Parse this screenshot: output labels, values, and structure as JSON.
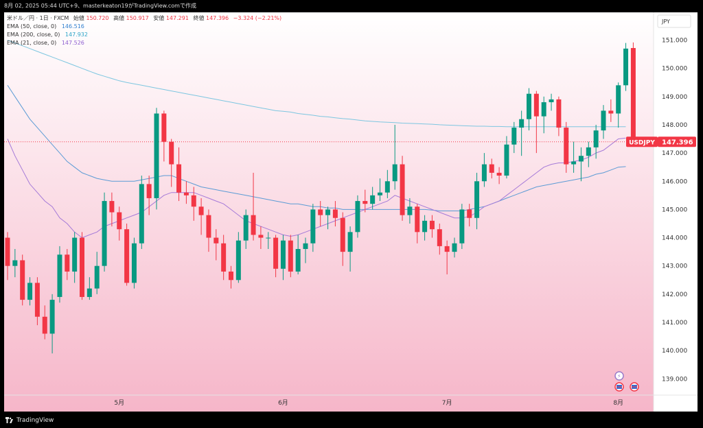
{
  "header": {
    "timestamp": "8月 02, 2025 05:44 UTC+9、masterkeaton19がTradingView.comで作成"
  },
  "legend": {
    "symbol_line": "米ドル／円 · 1日 · FXCM",
    "open_label": "始値",
    "open": "150.720",
    "high_label": "高値",
    "high": "150.917",
    "low_label": "安値",
    "low": "147.291",
    "close_label": "終値",
    "close": "147.396",
    "change": "−3.324 (−2.21%)",
    "ema50_label": "EMA (50, close, 0)",
    "ema50_value": "146.516",
    "ema200_label": "EMA (200, close, 0)",
    "ema200_value": "147.932",
    "ema21_label": "EMA (21, close, 0)",
    "ema21_value": "147.526"
  },
  "currency_box": "JPY",
  "footer": {
    "brand": "TradingView"
  },
  "colors": {
    "up": "#089981",
    "down": "#f23645",
    "ema50": "#5b9bd5",
    "ema200": "#7cc6e0",
    "ema21": "#a57ad8",
    "bg_top": "#ffffff",
    "bg_bottom": "#f6b6c9"
  },
  "chart_data": {
    "type": "candlestick",
    "symbol": "USDJPY",
    "timeframe": "1日",
    "y_ticks": [
      "151.000",
      "150.000",
      "149.000",
      "148.000",
      "147.000",
      "146.000",
      "145.000",
      "144.000",
      "143.000",
      "142.000",
      "141.000",
      "140.000",
      "139.000"
    ],
    "ylim": [
      138.7,
      151.7
    ],
    "x_ticks": [
      {
        "label": "5月",
        "index": 15
      },
      {
        "label": "6月",
        "index": 37
      },
      {
        "label": "7月",
        "index": 59
      },
      {
        "label": "8月",
        "index": 82
      }
    ],
    "last_price": {
      "symbol": "USDJPY",
      "value": "147.396",
      "y": 147.396
    },
    "candles": [
      [
        144.0,
        143.0,
        144.2,
        142.5
      ],
      [
        143.0,
        143.2,
        143.6,
        142.6
      ],
      [
        143.2,
        141.8,
        143.4,
        141.6
      ],
      [
        141.8,
        142.4,
        142.6,
        141.6
      ],
      [
        142.4,
        141.2,
        142.6,
        140.9
      ],
      [
        141.2,
        140.6,
        141.6,
        140.4
      ],
      [
        140.6,
        141.8,
        142.0,
        139.9
      ],
      [
        141.9,
        143.4,
        143.7,
        141.7
      ],
      [
        143.4,
        142.8,
        143.6,
        142.5
      ],
      [
        142.8,
        144.0,
        144.2,
        142.4
      ],
      [
        144.0,
        141.9,
        144.2,
        141.8
      ],
      [
        141.9,
        142.2,
        142.6,
        141.8
      ],
      [
        142.2,
        143.0,
        143.5,
        142.0
      ],
      [
        143.0,
        145.3,
        145.6,
        142.8
      ],
      [
        145.3,
        144.9,
        145.6,
        144.4
      ],
      [
        144.9,
        144.3,
        145.1,
        143.9
      ],
      [
        144.3,
        142.4,
        144.5,
        142.3
      ],
      [
        142.4,
        143.8,
        144.0,
        142.2
      ],
      [
        143.8,
        145.9,
        146.2,
        143.6
      ],
      [
        145.9,
        145.4,
        146.2,
        144.8
      ],
      [
        145.4,
        148.4,
        148.6,
        145.0
      ],
      [
        148.4,
        147.4,
        148.5,
        146.7
      ],
      [
        147.4,
        146.6,
        147.5,
        145.8
      ],
      [
        146.6,
        145.6,
        147.2,
        145.3
      ],
      [
        145.6,
        145.5,
        146.0,
        145.2
      ],
      [
        145.5,
        145.1,
        145.8,
        144.6
      ],
      [
        145.1,
        144.8,
        145.4,
        144.1
      ],
      [
        144.8,
        144.0,
        145.0,
        143.5
      ],
      [
        144.0,
        143.8,
        144.3,
        143.2
      ],
      [
        143.8,
        142.8,
        144.1,
        142.5
      ],
      [
        142.8,
        142.5,
        143.0,
        142.2
      ],
      [
        142.5,
        143.9,
        144.2,
        142.4
      ],
      [
        143.9,
        144.8,
        145.0,
        143.6
      ],
      [
        144.8,
        144.1,
        146.3,
        143.9
      ],
      [
        144.1,
        144.0,
        144.4,
        143.6
      ],
      [
        144.0,
        144.0,
        144.2,
        143.6
      ],
      [
        144.0,
        142.9,
        144.1,
        142.6
      ],
      [
        142.9,
        143.9,
        144.1,
        142.5
      ],
      [
        143.9,
        142.8,
        144.1,
        142.6
      ],
      [
        142.8,
        143.6,
        144.1,
        142.7
      ],
      [
        143.6,
        143.8,
        144.0,
        143.1
      ],
      [
        143.8,
        145.0,
        145.2,
        143.5
      ],
      [
        145.0,
        144.8,
        145.3,
        144.4
      ],
      [
        144.8,
        145.0,
        145.1,
        144.3
      ],
      [
        145.0,
        144.7,
        145.3,
        144.4
      ],
      [
        144.7,
        143.5,
        144.9,
        143.0
      ],
      [
        143.5,
        144.2,
        144.4,
        142.8
      ],
      [
        144.2,
        145.3,
        145.5,
        144.0
      ],
      [
        145.3,
        145.2,
        145.7,
        144.9
      ],
      [
        145.2,
        145.5,
        145.8,
        145.0
      ],
      [
        145.5,
        145.6,
        146.1,
        145.3
      ],
      [
        145.6,
        146.0,
        146.4,
        145.4
      ],
      [
        146.0,
        146.6,
        148.0,
        145.7
      ],
      [
        146.6,
        144.8,
        146.9,
        144.6
      ],
      [
        144.8,
        145.1,
        145.4,
        144.5
      ],
      [
        145.1,
        144.2,
        145.2,
        143.8
      ],
      [
        144.2,
        144.6,
        144.8,
        143.9
      ],
      [
        144.6,
        144.3,
        144.8,
        144.0
      ],
      [
        144.3,
        143.7,
        144.5,
        143.4
      ],
      [
        143.7,
        143.5,
        143.9,
        142.7
      ],
      [
        143.5,
        143.8,
        144.0,
        143.3
      ],
      [
        143.8,
        145.0,
        145.2,
        143.6
      ],
      [
        145.0,
        144.7,
        145.2,
        144.4
      ],
      [
        144.7,
        146.0,
        146.3,
        144.3
      ],
      [
        146.0,
        146.6,
        147.0,
        145.8
      ],
      [
        146.6,
        146.3,
        146.8,
        146.1
      ],
      [
        146.3,
        146.2,
        146.5,
        145.9
      ],
      [
        146.2,
        147.3,
        147.6,
        146.1
      ],
      [
        147.3,
        147.9,
        148.1,
        147.0
      ],
      [
        147.9,
        148.2,
        148.5,
        146.9
      ],
      [
        148.2,
        149.1,
        149.3,
        147.8
      ],
      [
        149.1,
        148.3,
        149.2,
        147.0
      ],
      [
        148.3,
        148.8,
        149.0,
        147.7
      ],
      [
        148.8,
        148.9,
        149.1,
        148.5
      ],
      [
        148.9,
        147.9,
        149.0,
        147.6
      ],
      [
        147.9,
        146.6,
        148.1,
        146.3
      ],
      [
        146.6,
        146.7,
        147.4,
        146.3
      ],
      [
        146.7,
        146.9,
        147.2,
        146.0
      ],
      [
        146.9,
        147.2,
        147.4,
        146.5
      ],
      [
        147.2,
        147.8,
        148.0,
        146.8
      ],
      [
        147.8,
        148.5,
        148.7,
        147.5
      ],
      [
        148.5,
        148.4,
        148.9,
        148.1
      ],
      [
        148.4,
        149.4,
        149.5,
        147.9
      ],
      [
        149.4,
        150.7,
        150.9,
        149.2
      ],
      [
        150.72,
        147.396,
        150.917,
        147.291
      ]
    ],
    "ema21": [
      147.5,
      146.9,
      146.4,
      145.9,
      145.6,
      145.3,
      145.1,
      144.7,
      144.5,
      144.2,
      144.0,
      144.1,
      144.2,
      144.4,
      144.5,
      144.6,
      144.7,
      144.8,
      144.9,
      145.1,
      145.3,
      145.5,
      145.6,
      145.6,
      145.6,
      145.6,
      145.5,
      145.4,
      145.3,
      145.2,
      145.0,
      144.8,
      144.6,
      144.5,
      144.4,
      144.3,
      144.2,
      144.1,
      144.05,
      144.1,
      144.2,
      144.3,
      144.4,
      144.5,
      144.6,
      144.7,
      144.8,
      144.9,
      145.0,
      145.1,
      145.2,
      145.3,
      145.5,
      145.4,
      145.3,
      145.2,
      145.1,
      145.0,
      144.9,
      144.8,
      144.7,
      144.7,
      144.75,
      144.9,
      145.1,
      145.2,
      145.3,
      145.5,
      145.7,
      145.9,
      146.1,
      146.3,
      146.5,
      146.6,
      146.65,
      146.65,
      146.7,
      146.75,
      146.85,
      147.0,
      147.1,
      147.3,
      147.5,
      147.53
    ],
    "ema50": [
      149.4,
      149.0,
      148.6,
      148.2,
      147.9,
      147.6,
      147.3,
      147.0,
      146.7,
      146.5,
      146.3,
      146.2,
      146.1,
      146.05,
      146.0,
      146.0,
      146.0,
      146.0,
      146.05,
      146.1,
      146.15,
      146.2,
      146.2,
      146.1,
      146.0,
      145.9,
      145.8,
      145.75,
      145.7,
      145.65,
      145.6,
      145.55,
      145.5,
      145.45,
      145.4,
      145.35,
      145.3,
      145.25,
      145.2,
      145.2,
      145.15,
      145.1,
      145.1,
      145.05,
      145.05,
      145.0,
      145.0,
      145.0,
      145.0,
      145.0,
      145.0,
      145.0,
      145.0,
      145.0,
      145.0,
      145.0,
      145.0,
      144.98,
      144.95,
      144.95,
      144.95,
      144.95,
      145.0,
      145.05,
      145.1,
      145.2,
      145.3,
      145.4,
      145.5,
      145.6,
      145.7,
      145.8,
      145.85,
      145.9,
      145.95,
      146.0,
      146.05,
      146.1,
      146.15,
      146.25,
      146.3,
      146.4,
      146.5,
      146.52
    ],
    "ema200": [
      151.0,
      150.9,
      150.8,
      150.7,
      150.6,
      150.5,
      150.4,
      150.3,
      150.2,
      150.1,
      150.0,
      149.9,
      149.8,
      149.72,
      149.64,
      149.56,
      149.5,
      149.45,
      149.4,
      149.35,
      149.3,
      149.25,
      149.2,
      149.15,
      149.1,
      149.05,
      149.0,
      148.95,
      148.9,
      148.85,
      148.8,
      148.75,
      148.7,
      148.65,
      148.6,
      148.55,
      148.5,
      148.48,
      148.45,
      148.4,
      148.37,
      148.34,
      148.3,
      148.28,
      148.25,
      148.22,
      148.2,
      148.17,
      148.14,
      148.12,
      148.1,
      148.09,
      148.08,
      148.06,
      148.05,
      148.04,
      148.03,
      148.02,
      148.0,
      147.99,
      147.98,
      147.97,
      147.96,
      147.95,
      147.95,
      147.94,
      147.94,
      147.93,
      147.93,
      147.93,
      147.93,
      147.93,
      147.93,
      147.93,
      147.93,
      147.93,
      147.93,
      147.93,
      147.93,
      147.93,
      147.93,
      147.93,
      147.93,
      147.93
    ]
  }
}
